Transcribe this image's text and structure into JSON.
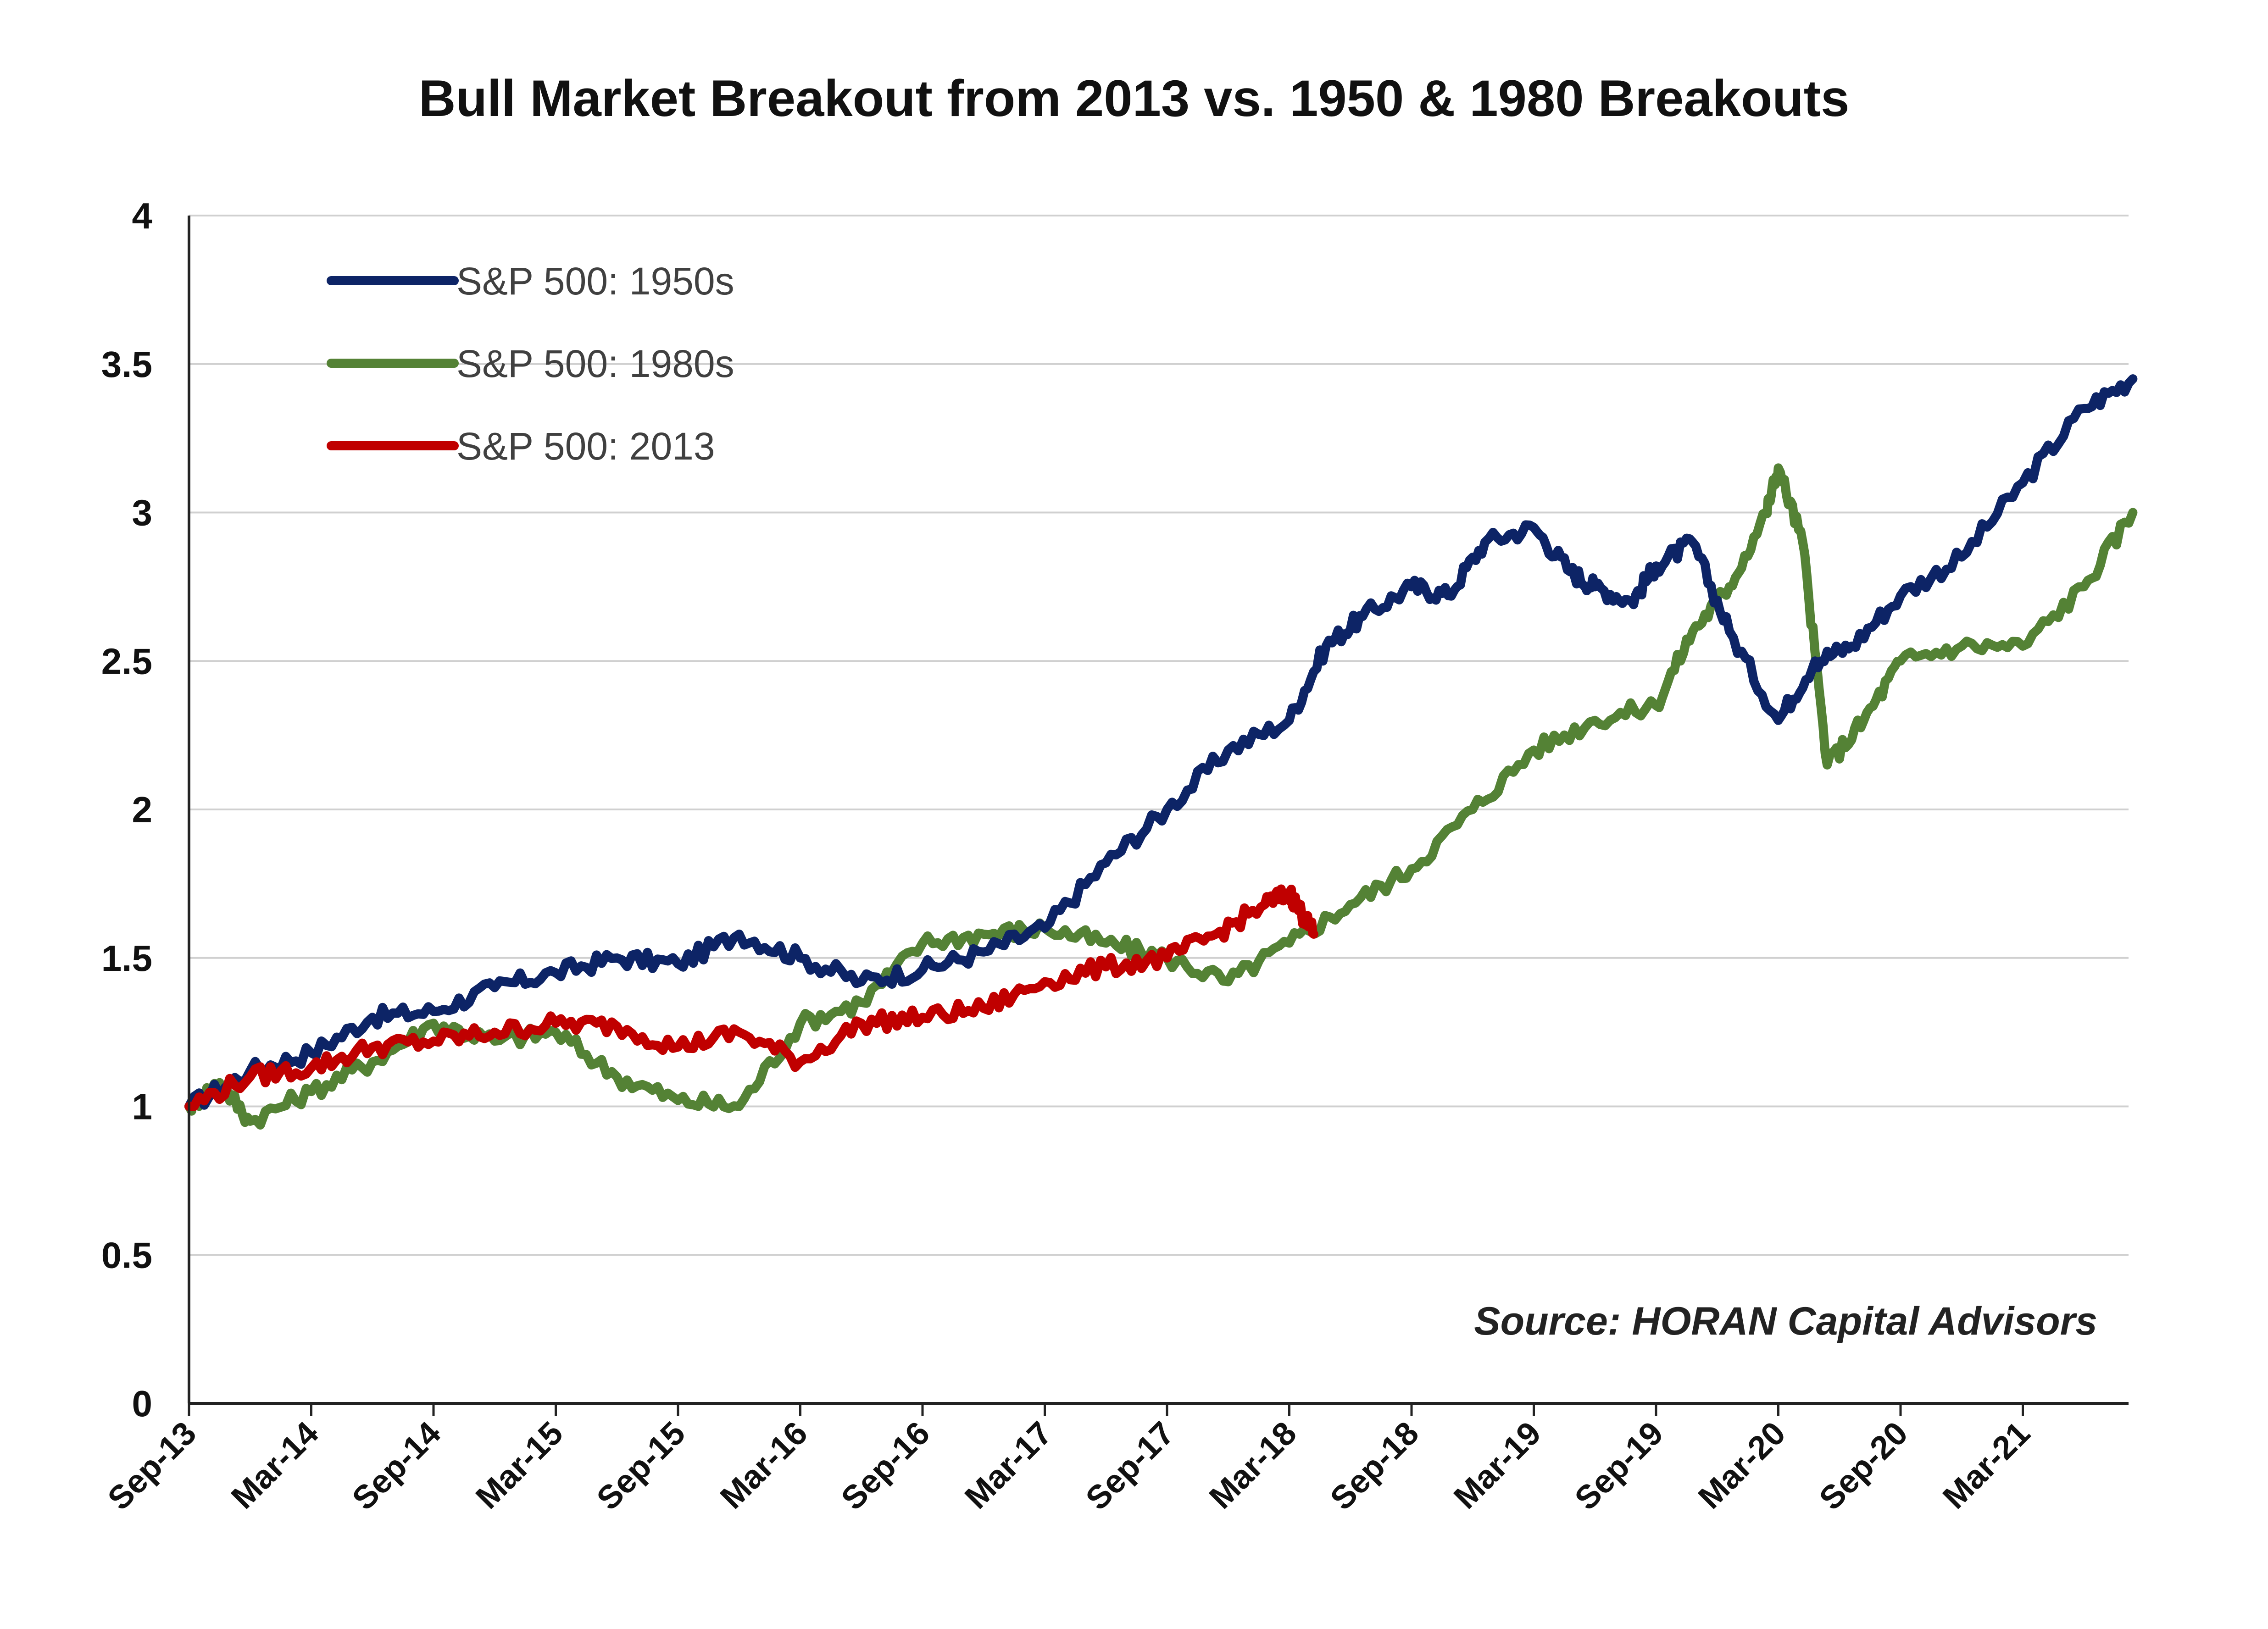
{
  "chart_data": {
    "type": "line",
    "title": "Bull Market Breakout from 2013 vs. 1950 & 1980 Breakouts",
    "xlabel": "",
    "ylabel": "",
    "ylim": [
      0,
      4
    ],
    "yticks": [
      "0",
      "0.5",
      "1",
      "1.5",
      "2",
      "2.5",
      "3",
      "3.5",
      "4"
    ],
    "categories": [
      "Sep-13",
      "Mar-14",
      "Sep-14",
      "Mar-15",
      "Sep-15",
      "Mar-16",
      "Sep-16",
      "Mar-17",
      "Sep-17",
      "Mar-18",
      "Sep-18",
      "Mar-19",
      "Sep-19",
      "Mar-20",
      "Sep-20",
      "Mar-21"
    ],
    "grid": true,
    "legend_position": "top-left",
    "annotation": "Source: HORAN Capital Advisors",
    "series": [
      {
        "name": "S&P 500: 1950s",
        "color": "#0d2466",
        "x": [
          0,
          0.5,
          1,
          1.5,
          2,
          2.5,
          3,
          3.5,
          4,
          4.5,
          5,
          5.5,
          6,
          6.5,
          7,
          7.5,
          8,
          8.5,
          9,
          9.3,
          9.6,
          10,
          10.3,
          10.6,
          11,
          11.3,
          11.5,
          11.8,
          12,
          12.3,
          12.6,
          13,
          13.3,
          13.6,
          14,
          14.5,
          15,
          15.5,
          15.9
        ],
        "values": [
          1.0,
          1.12,
          1.18,
          1.3,
          1.32,
          1.4,
          1.45,
          1.5,
          1.48,
          1.58,
          1.5,
          1.42,
          1.46,
          1.52,
          1.6,
          1.82,
          2.0,
          2.2,
          2.3,
          2.55,
          2.65,
          2.75,
          2.72,
          2.9,
          2.95,
          2.8,
          2.75,
          2.7,
          2.82,
          2.9,
          2.6,
          2.3,
          2.5,
          2.55,
          2.72,
          2.85,
          3.1,
          3.35,
          3.45
        ]
      },
      {
        "name": "S&P 500: 1980s",
        "color": "#548235",
        "x": [
          0,
          0.25,
          0.5,
          1,
          1.5,
          2,
          2.5,
          3,
          3.5,
          4,
          4.5,
          5,
          5.5,
          6,
          6.5,
          7,
          7.5,
          8,
          8.5,
          9,
          9.5,
          10,
          10.5,
          11,
          11.5,
          12,
          12.3,
          12.6,
          12.9,
          13,
          13.2,
          13.4,
          13.7,
          14,
          14.5,
          15,
          15.5,
          15.9
        ],
        "values": [
          1.0,
          1.08,
          0.95,
          1.05,
          1.15,
          1.28,
          1.22,
          1.25,
          1.1,
          1.02,
          1.0,
          1.28,
          1.35,
          1.55,
          1.58,
          1.6,
          1.55,
          1.5,
          1.42,
          1.55,
          1.68,
          1.8,
          2.0,
          2.2,
          2.3,
          2.35,
          2.6,
          2.75,
          3.0,
          3.15,
          2.9,
          2.15,
          2.3,
          2.5,
          2.55,
          2.55,
          2.75,
          3.0
        ]
      },
      {
        "name": "S&P 500: 2013",
        "color": "#c00000",
        "x": [
          0,
          0.5,
          1,
          1.5,
          2,
          2.5,
          3,
          3.5,
          4,
          4.5,
          5,
          5.5,
          6,
          6.5,
          7,
          7.5,
          8,
          8.4,
          8.8,
          9.0,
          9.1,
          9.2
        ],
        "values": [
          1.0,
          1.1,
          1.13,
          1.2,
          1.22,
          1.25,
          1.28,
          1.27,
          1.2,
          1.25,
          1.15,
          1.28,
          1.3,
          1.33,
          1.42,
          1.47,
          1.5,
          1.58,
          1.68,
          1.72,
          1.65,
          1.58
        ]
      }
    ]
  }
}
